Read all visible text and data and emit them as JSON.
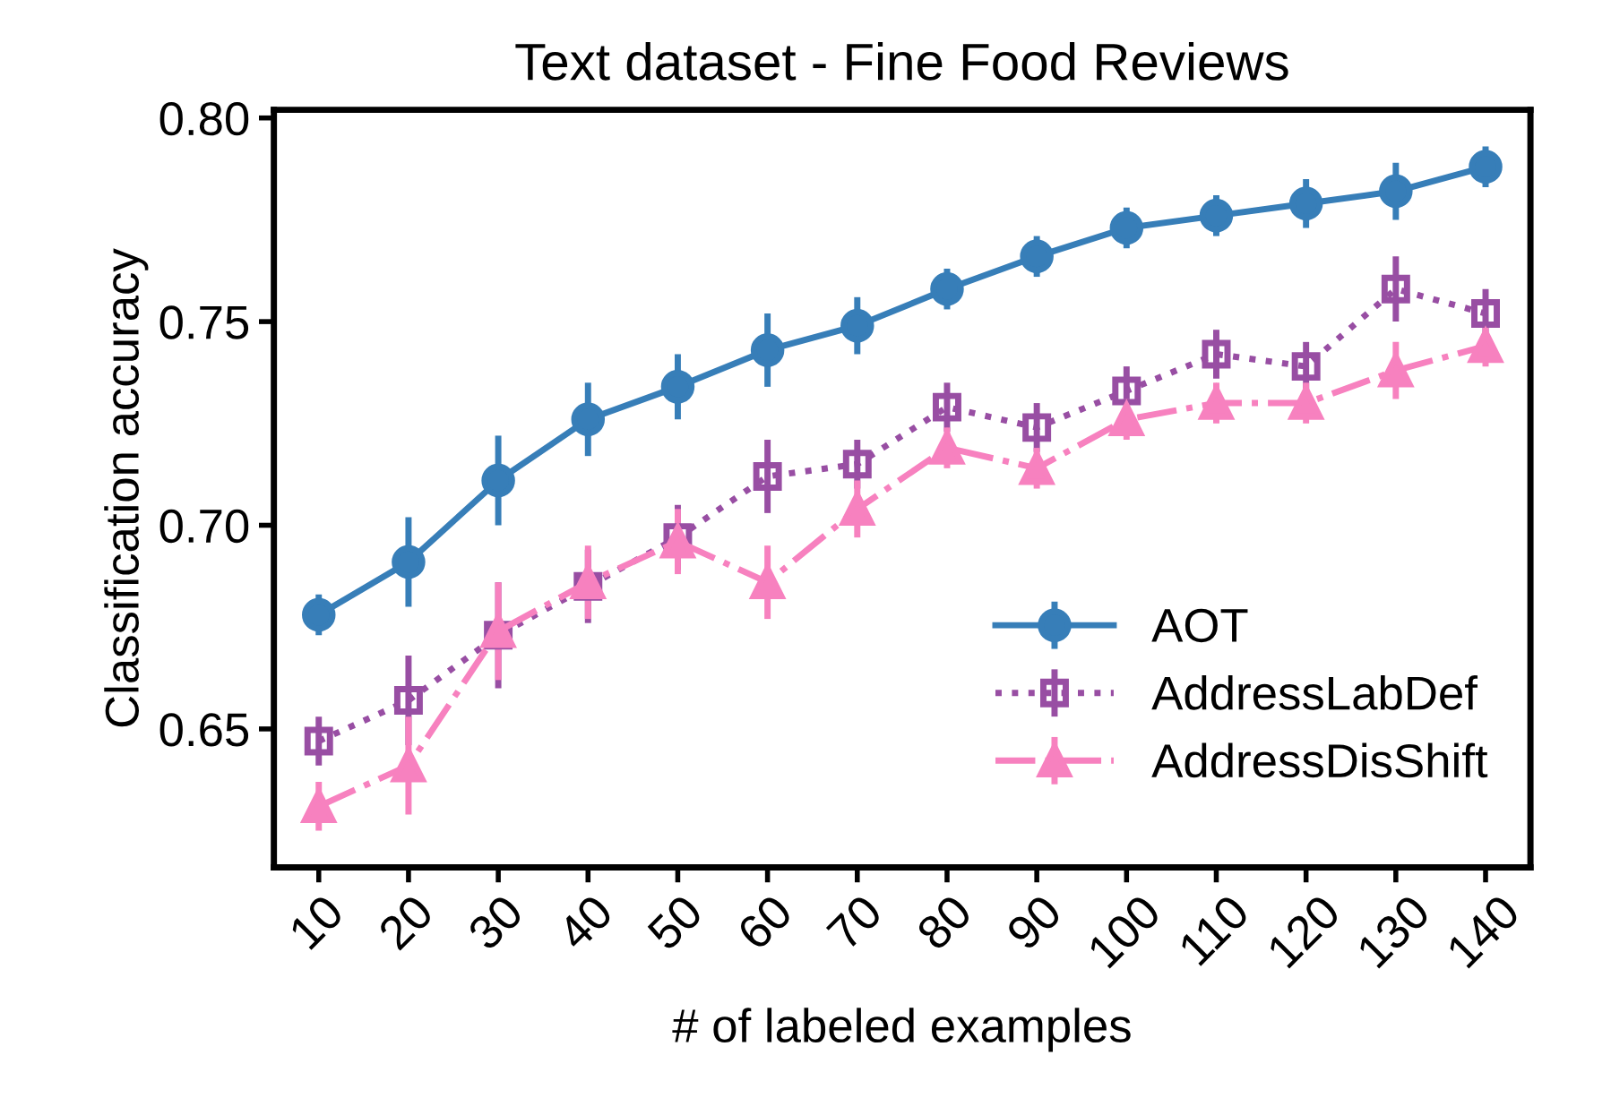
{
  "chart_data": {
    "type": "line",
    "title": "Text dataset - Fine Food Reviews",
    "xlabel": "# of labeled examples",
    "ylabel": "Classification accuracy",
    "categories": [
      "10",
      "20",
      "30",
      "40",
      "50",
      "60",
      "70",
      "80",
      "90",
      "100",
      "110",
      "120",
      "130",
      "140"
    ],
    "ylim": [
      0.616,
      0.802
    ],
    "yticks": [
      {
        "value": 0.65,
        "label": "0.65"
      },
      {
        "value": 0.7,
        "label": "0.70"
      },
      {
        "value": 0.75,
        "label": "0.75"
      },
      {
        "value": 0.8,
        "label": "0.80"
      }
    ],
    "grid": false,
    "legend": "bottom right",
    "series": [
      {
        "name": "AOT",
        "color": "#377eb8",
        "marker": "circle",
        "line_style": "solid",
        "values": [
          0.678,
          0.691,
          0.711,
          0.726,
          0.734,
          0.743,
          0.749,
          0.758,
          0.766,
          0.773,
          0.776,
          0.779,
          0.782,
          0.788
        ],
        "errors": [
          0.005,
          0.011,
          0.011,
          0.009,
          0.008,
          0.009,
          0.007,
          0.005,
          0.005,
          0.005,
          0.005,
          0.006,
          0.007,
          0.005
        ]
      },
      {
        "name": "AddressLabDef",
        "color": "#984ea3",
        "marker": "square",
        "line_style": "dotted",
        "values": [
          0.647,
          0.657,
          0.673,
          0.685,
          0.697,
          0.712,
          0.715,
          0.729,
          0.724,
          0.733,
          0.742,
          0.739,
          0.758,
          0.752
        ],
        "errors": [
          0.006,
          0.011,
          0.013,
          0.009,
          0.008,
          0.009,
          0.006,
          0.006,
          0.006,
          0.006,
          0.006,
          0.006,
          0.008,
          0.006
        ]
      },
      {
        "name": "AddressDisShift",
        "color": "#f781bf",
        "marker": "triangle",
        "line_style": "dashdot",
        "values": [
          0.631,
          0.641,
          0.674,
          0.686,
          0.696,
          0.686,
          0.704,
          0.719,
          0.714,
          0.726,
          0.73,
          0.73,
          0.738,
          0.744
        ],
        "errors": [
          0.006,
          0.012,
          0.012,
          0.009,
          0.008,
          0.009,
          0.007,
          0.005,
          0.005,
          0.005,
          0.005,
          0.005,
          0.007,
          0.005
        ]
      }
    ]
  }
}
